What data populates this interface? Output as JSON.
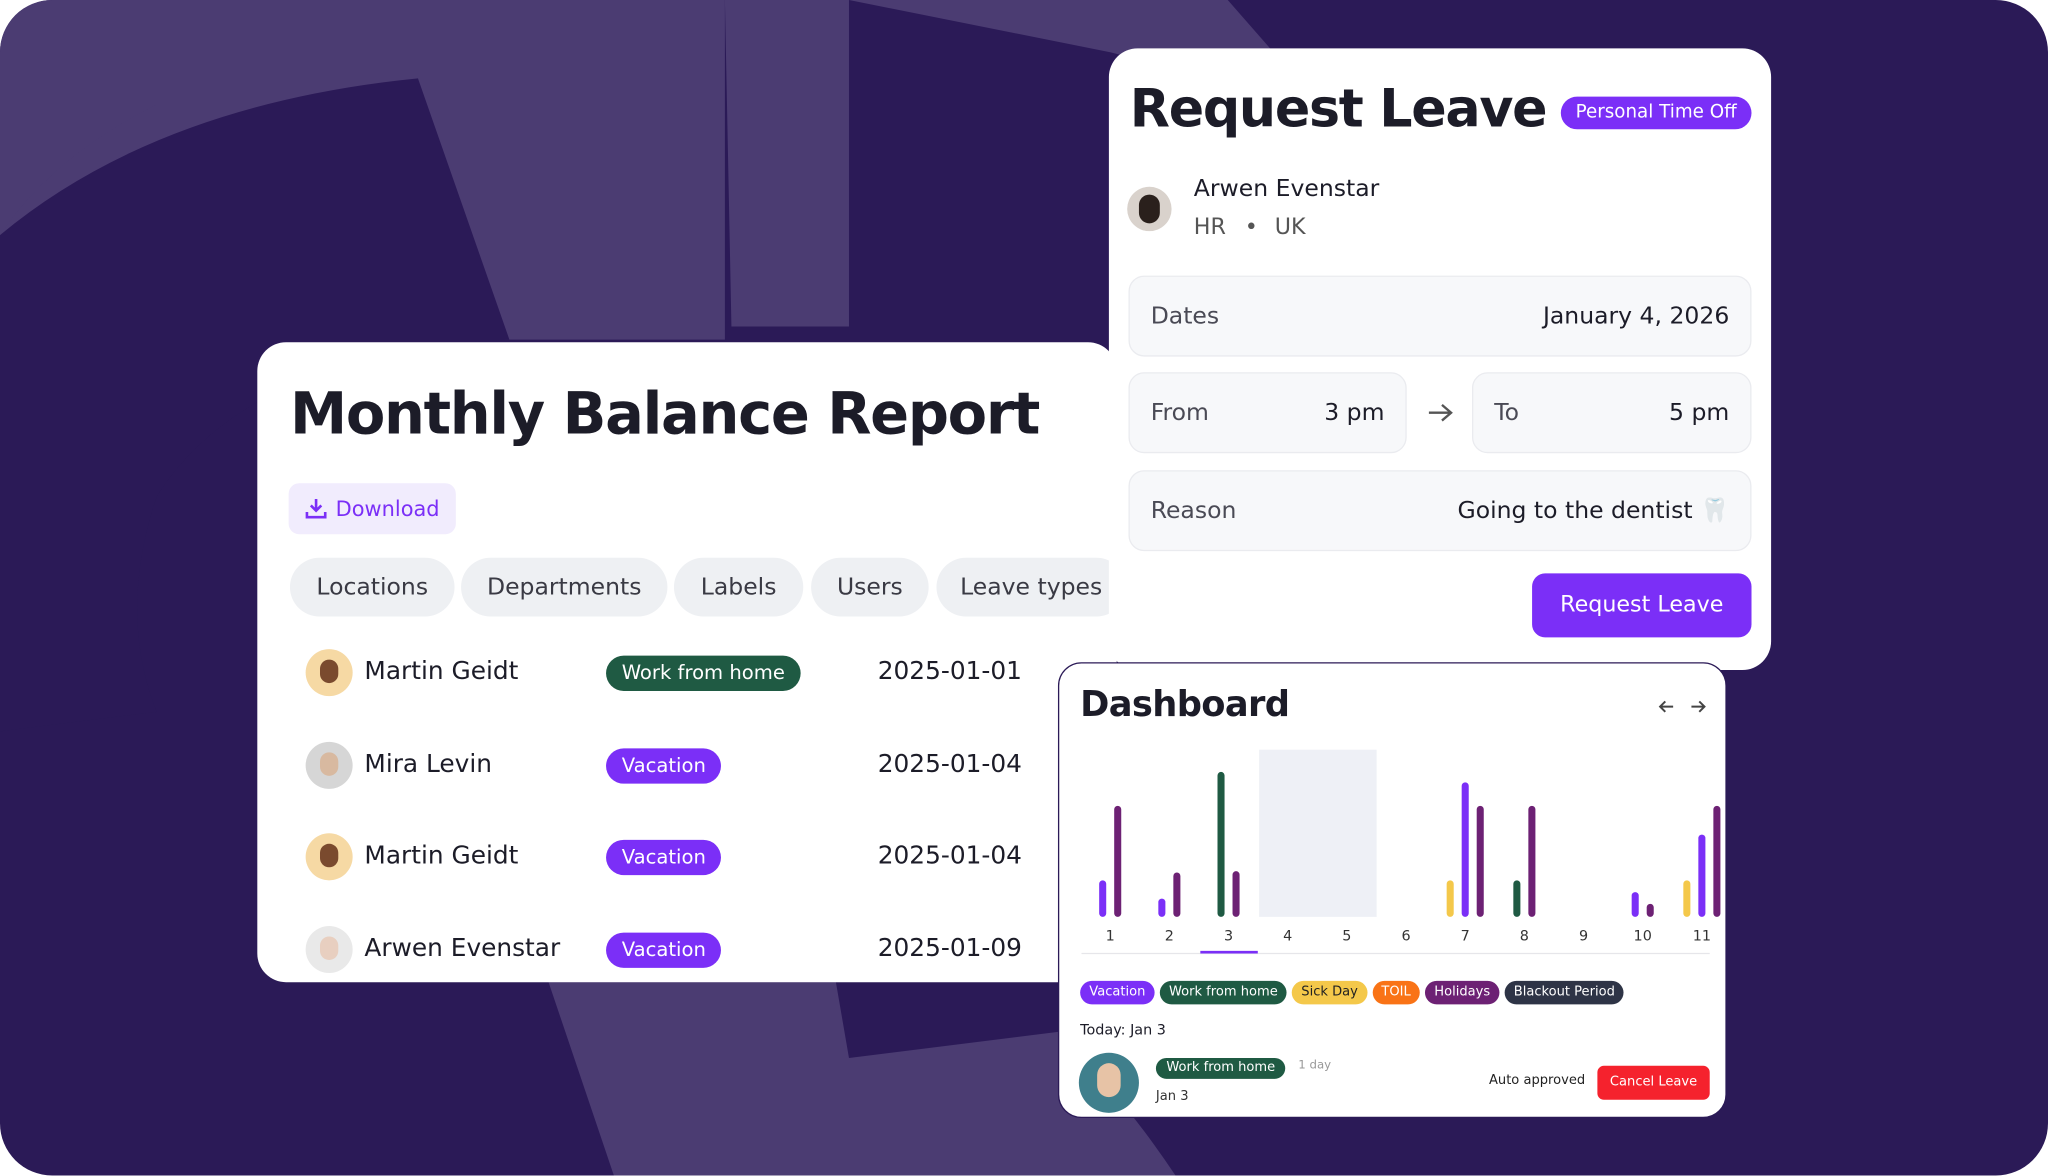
{
  "report": {
    "title": "Monthly Balance Report",
    "download": "Download",
    "filters": [
      "Locations",
      "Departments",
      "Labels",
      "Users",
      "Leave types"
    ],
    "rows": [
      {
        "name": "Martin Geidt",
        "type": "Work from home",
        "color": "#1f5a43",
        "date": "2025-01-01"
      },
      {
        "name": "Mira Levin",
        "type": "Vacation",
        "color": "#7b2ff7",
        "date": "2025-01-04"
      },
      {
        "name": "Martin Geidt",
        "type": "Vacation",
        "color": "#7b2ff7",
        "date": "2025-01-04"
      },
      {
        "name": "Arwen Evenstar",
        "type": "Vacation",
        "color": "#7b2ff7",
        "date": "2025-01-09"
      }
    ]
  },
  "request": {
    "title": "Request Leave",
    "badge": "Personal Time Off",
    "user": {
      "name": "Arwen Evenstar",
      "department": "HR",
      "location": "UK"
    },
    "dates_label": "Dates",
    "dates_value": "January 4, 2026",
    "from_label": "From",
    "from_value": "3 pm",
    "to_label": "To",
    "to_value": "5 pm",
    "reason_label": "Reason",
    "reason_value": "Going to the dentist 🦷",
    "button": "Request Leave"
  },
  "dashboard": {
    "title": "Dashboard",
    "today": "Today: Jan 3",
    "entry": {
      "type": "Work from home",
      "duration": "1 day",
      "date": "Jan 3",
      "status": "Auto approved",
      "action": "Cancel Leave"
    }
  },
  "chart_data": {
    "type": "bar",
    "categories": [
      "1",
      "2",
      "3",
      "4",
      "5",
      "6",
      "7",
      "8",
      "9",
      "10",
      "11"
    ],
    "series": [
      {
        "name": "Vacation",
        "color": "#7b2ff7",
        "values": [
          28,
          14,
          null,
          null,
          null,
          null,
          103,
          null,
          null,
          19,
          63
        ]
      },
      {
        "name": "Work from home",
        "color": "#1f5a43",
        "values": [
          null,
          null,
          111,
          null,
          null,
          null,
          null,
          28,
          null,
          null,
          null
        ]
      },
      {
        "name": "Sick Day",
        "color": "#f4c84a",
        "values": [
          null,
          null,
          null,
          null,
          null,
          null,
          28,
          null,
          null,
          null,
          28
        ]
      },
      {
        "name": "TOIL",
        "color": "#f97316",
        "values": [
          null,
          null,
          null,
          null,
          null,
          null,
          null,
          null,
          null,
          null,
          null
        ]
      },
      {
        "name": "Holidays",
        "color": "#6d2174",
        "values": [
          85,
          34,
          35,
          null,
          null,
          null,
          85,
          85,
          null,
          10,
          85
        ]
      },
      {
        "name": "Blackout Period",
        "color": "#2e3446",
        "values": [
          null,
          null,
          null,
          null,
          null,
          null,
          null,
          null,
          null,
          null,
          null
        ]
      }
    ]
  }
}
